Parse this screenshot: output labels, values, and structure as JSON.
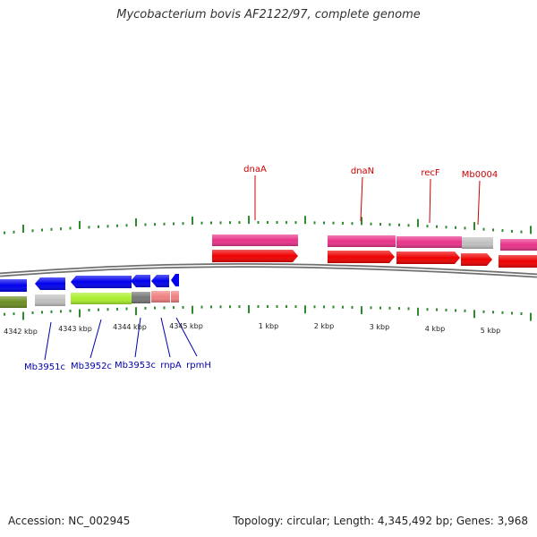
{
  "title": "Mycobacterium bovis AF2122/97, complete genome",
  "footer": {
    "accession": "Accession: NC_002945",
    "summary": "Topology: circular; Length: 4,345,492 bp; Genes: 3,968"
  },
  "colors": {
    "backbone": "#808080",
    "tick": "#2e8b2e",
    "forward_gene": "#ee0000",
    "forward_feature": "#e8338a",
    "reverse_gene": "#0000ee",
    "label_forward": "#cc0000",
    "label_reverse": "#0000aa",
    "lime": "#a8ee2c",
    "olive": "#6b8e23",
    "grey": "#c0c0c0",
    "dark_grey": "#777777",
    "salmon": "#f08080"
  },
  "scale_labels": [
    "4342 kbp",
    "4343 kbp",
    "4344 kbp",
    "4345 kbp",
    "1 kbp",
    "2 kbp",
    "3 kbp",
    "4 kbp",
    "5 kbp"
  ],
  "forward_labels": [
    "dnaA",
    "dnaN",
    "recF",
    "Mb0004"
  ],
  "reverse_labels": [
    "Mb3951c",
    "Mb3952c",
    "Mb3953c",
    "rnpA",
    "rpmH"
  ]
}
